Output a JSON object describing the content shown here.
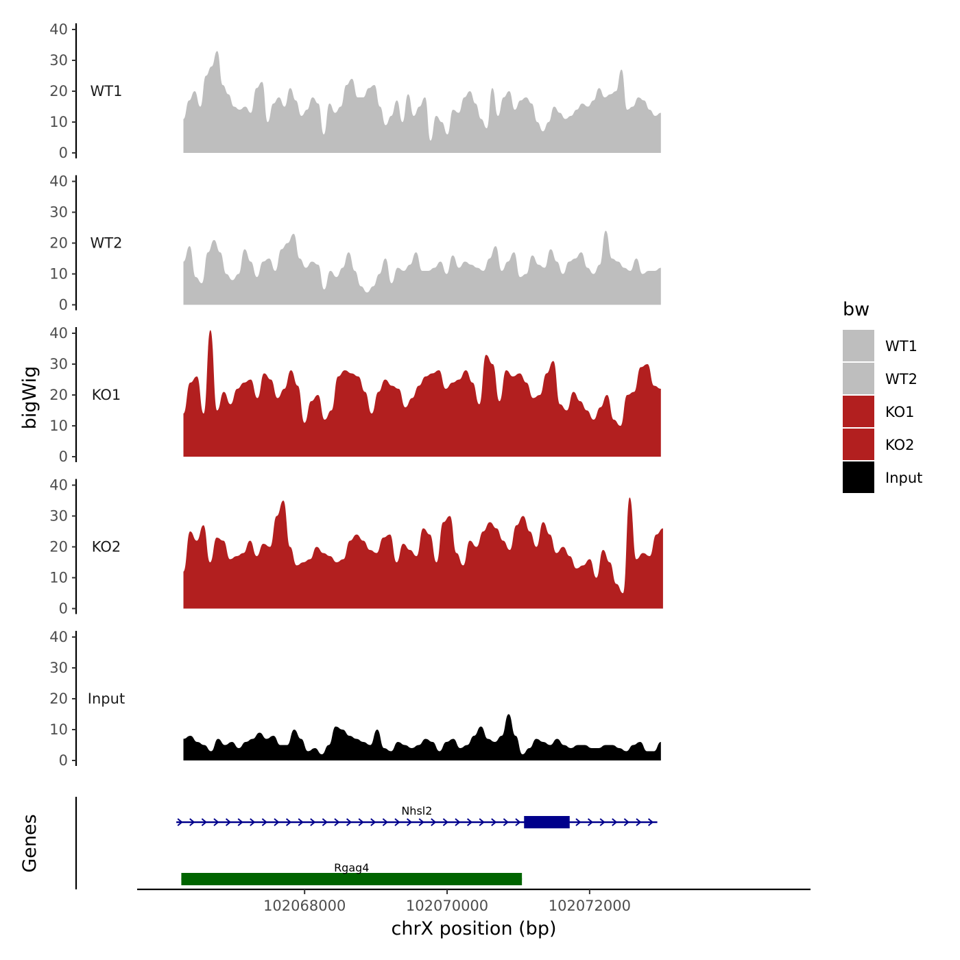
{
  "chart_data": {
    "type": "area",
    "ylabel": "bigWig",
    "xlabel": "chrX position (bp)",
    "genes_label": "Genes",
    "x_range": [
      102065650,
      102075100
    ],
    "x_ticks": [
      {
        "value": 102068000,
        "label": "102068000"
      },
      {
        "value": 102070000,
        "label": "102070000"
      },
      {
        "value": 102072000,
        "label": "102072000"
      }
    ],
    "y_ticks": [
      {
        "value": 0,
        "label": "0"
      },
      {
        "value": 10,
        "label": "10"
      },
      {
        "value": 20,
        "label": "20"
      },
      {
        "value": 30,
        "label": "30"
      },
      {
        "value": 40,
        "label": "40"
      }
    ],
    "ylim": [
      0,
      43
    ],
    "legend": {
      "title": "bw",
      "position": "right",
      "entries": [
        {
          "label": "WT1",
          "color": "#bebebe"
        },
        {
          "label": "WT2",
          "color": "#bebebe"
        },
        {
          "label": "KO1",
          "color": "#b21f1f"
        },
        {
          "label": "KO2",
          "color": "#b21f1f"
        },
        {
          "label": "Input",
          "color": "#000000"
        }
      ]
    },
    "tracks": [
      {
        "name": "WT1",
        "color": "#bebebe",
        "x_start": 102066300,
        "x_end": 102073000,
        "values": [
          11,
          17,
          20,
          15,
          25,
          28,
          33,
          22,
          19,
          15,
          14,
          15,
          13,
          21,
          23,
          10,
          16,
          18,
          15,
          21,
          17,
          12,
          14,
          18,
          16,
          6,
          16,
          13,
          15,
          22,
          24,
          18,
          18,
          21,
          22,
          15,
          9,
          12,
          17,
          10,
          19,
          12,
          15,
          18,
          4,
          12,
          10,
          6,
          14,
          13,
          18,
          20,
          16,
          11,
          8,
          21,
          12,
          18,
          20,
          14,
          17,
          18,
          16,
          10,
          7,
          10,
          15,
          13,
          11,
          12,
          14,
          16,
          15,
          17,
          21,
          18,
          19,
          20,
          27,
          14,
          15,
          18,
          17,
          14,
          12,
          13
        ]
      },
      {
        "name": "WT2",
        "color": "#bebebe",
        "x_start": 102066300,
        "x_end": 102073000,
        "values": [
          14,
          19,
          9,
          7,
          17,
          21,
          17,
          10,
          8,
          10,
          18,
          14,
          9,
          14,
          15,
          11,
          18,
          20,
          23,
          15,
          12,
          14,
          13,
          5,
          11,
          9,
          12,
          17,
          11,
          6,
          4,
          6,
          10,
          15,
          7,
          12,
          11,
          13,
          17,
          11,
          11,
          12,
          14,
          10,
          16,
          12,
          14,
          13,
          12,
          11,
          15,
          19,
          11,
          14,
          17,
          9,
          10,
          16,
          13,
          12,
          18,
          14,
          10,
          14,
          15,
          17,
          12,
          10,
          13,
          24,
          15,
          14,
          12,
          11,
          15,
          10,
          11,
          11,
          12
        ]
      },
      {
        "name": "KO1",
        "color": "#b21f1f",
        "x_start": 102066300,
        "x_end": 102073000,
        "values": [
          14,
          24,
          26,
          14,
          41,
          15,
          21,
          17,
          22,
          24,
          25,
          19,
          27,
          25,
          19,
          22,
          28,
          23,
          11,
          18,
          20,
          12,
          15,
          26,
          28,
          27,
          26,
          21,
          14,
          21,
          25,
          23,
          22,
          16,
          19,
          23,
          26,
          27,
          28,
          22,
          24,
          25,
          28,
          24,
          17,
          33,
          30,
          18,
          28,
          26,
          27,
          24,
          19,
          20,
          27,
          31,
          17,
          15,
          21,
          18,
          15,
          12,
          16,
          20,
          12,
          10,
          20,
          21,
          29,
          30,
          23,
          22
        ]
      },
      {
        "name": "KO2",
        "color": "#b21f1f",
        "x_start": 102066300,
        "x_end": 102073030,
        "values": [
          12,
          25,
          22,
          27,
          15,
          23,
          22,
          16,
          17,
          18,
          22,
          17,
          21,
          20,
          30,
          35,
          20,
          14,
          15,
          16,
          20,
          18,
          17,
          15,
          16,
          22,
          24,
          22,
          19,
          18,
          23,
          24,
          15,
          21,
          19,
          17,
          26,
          24,
          15,
          28,
          30,
          18,
          14,
          22,
          20,
          25,
          28,
          26,
          22,
          19,
          27,
          30,
          25,
          20,
          28,
          24,
          18,
          20,
          17,
          13,
          14,
          16,
          10,
          19,
          15,
          8,
          5,
          36,
          16,
          18,
          17,
          24,
          26
        ]
      },
      {
        "name": "Input",
        "color": "#000000",
        "x_start": 102066300,
        "x_end": 102073000,
        "values": [
          7,
          8,
          6,
          5,
          3,
          7,
          5,
          6,
          4,
          6,
          7,
          9,
          7,
          8,
          5,
          5,
          10,
          7,
          3,
          4,
          2,
          5,
          11,
          10,
          8,
          7,
          6,
          5,
          10,
          4,
          3,
          6,
          5,
          4,
          5,
          7,
          6,
          3,
          6,
          7,
          4,
          5,
          8,
          11,
          7,
          6,
          8,
          15,
          8,
          2,
          4,
          7,
          6,
          5,
          7,
          5,
          4,
          5,
          5,
          4,
          4,
          5,
          5,
          4,
          3,
          5,
          6,
          3,
          3,
          6
        ]
      }
    ],
    "genes": [
      {
        "name": "Nhsl2",
        "color": "#00008b",
        "strand": "+",
        "start": 102066200,
        "end": 102072950,
        "exons": [
          [
            102071080,
            102071720
          ]
        ]
      },
      {
        "name": "Rgag4",
        "color": "#006400",
        "strand": "+",
        "start": 102066270,
        "end": 102071050,
        "exons": [
          [
            102066270,
            102071050
          ]
        ]
      }
    ]
  }
}
